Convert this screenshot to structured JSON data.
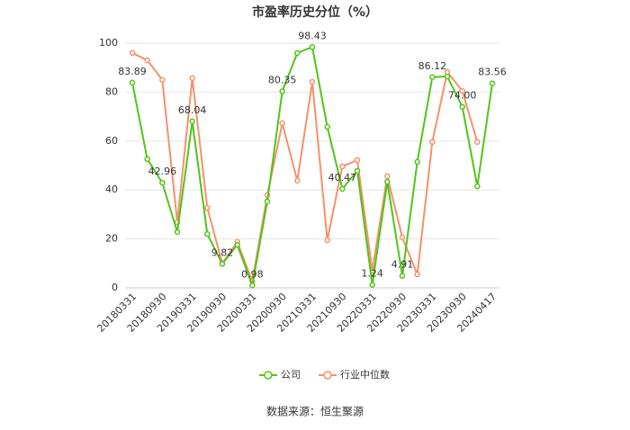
{
  "chart_data": {
    "type": "line",
    "title": "市盈率历史分位（%）",
    "categories": [
      "20180331",
      null,
      "20180930",
      null,
      "20190331",
      null,
      "20190930",
      null,
      "20200331",
      null,
      "20200930",
      null,
      "20210331",
      null,
      "20210930",
      null,
      "20220331",
      null,
      "20220930",
      null,
      "20230331",
      null,
      "20230930",
      null,
      "20240417"
    ],
    "series": [
      {
        "name": "公司",
        "color": "#52c41a",
        "values": [
          83.89,
          52.6,
          42.96,
          22.8,
          68.04,
          22,
          9.82,
          17.6,
          0.98,
          35.3,
          80.35,
          96,
          98.43,
          65.8,
          40.47,
          47.8,
          1.24,
          43.4,
          4.91,
          51.5,
          86.12,
          86.4,
          74,
          41.5,
          83.56
        ],
        "value_labels": [
          "83.89",
          null,
          "42.96",
          null,
          "68.04",
          null,
          "9.82",
          null,
          "0.98",
          null,
          "80.35",
          null,
          "98.43",
          null,
          "40.47",
          null,
          "1.24",
          null,
          "4.91",
          null,
          "86.12",
          null,
          "74.00",
          null,
          "83.56"
        ]
      },
      {
        "name": "行业中位数",
        "color": "#f5916a",
        "values": [
          96,
          93,
          85,
          26.8,
          85.7,
          32.7,
          10,
          18.8,
          2.6,
          37.9,
          67.3,
          43.8,
          84.2,
          19.5,
          49.6,
          52.2,
          7,
          45.6,
          20.6,
          5.5,
          59.6,
          88.2,
          80.5,
          59.6,
          null
        ]
      }
    ],
    "ylim": [
      0,
      100
    ],
    "yticks": [
      0,
      20,
      40,
      60,
      80,
      100
    ],
    "grid": true,
    "source": "数据来源：恒生聚源"
  }
}
